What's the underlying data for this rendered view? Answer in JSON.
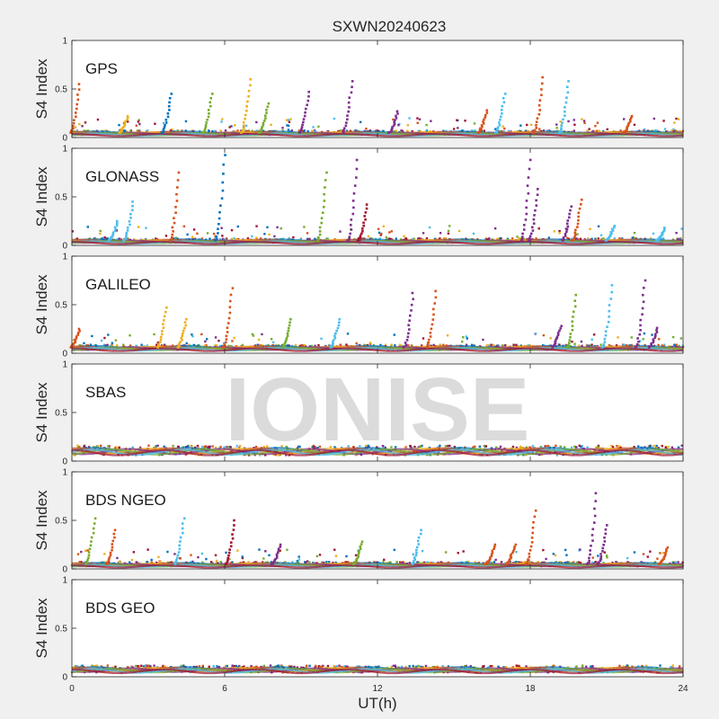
{
  "chart_data": {
    "type": "scatter",
    "title": "SXWN20240623",
    "xlabel": "UT(h)",
    "ylabel": "S4 Index",
    "xlim": [
      0,
      24
    ],
    "ylim": [
      0,
      1
    ],
    "x_ticks": [
      0,
      6,
      12,
      18,
      24
    ],
    "y_ticks": [
      0,
      0.5,
      1
    ],
    "watermark": "IONISE",
    "colors": [
      "#0072BD",
      "#D95319",
      "#EDB120",
      "#7E2F8E",
      "#77AC30",
      "#4DBEEE",
      "#A2142F"
    ],
    "panels": [
      {
        "name": "GPS",
        "baseline": 0.05,
        "spikes": [
          {
            "x": 0.3,
            "y": 0.55,
            "color": "#D95319"
          },
          {
            "x": 2.2,
            "y": 0.22,
            "color": "#EDB120"
          },
          {
            "x": 3.9,
            "y": 0.45,
            "color": "#0072BD"
          },
          {
            "x": 5.5,
            "y": 0.45,
            "color": "#77AC30"
          },
          {
            "x": 7.0,
            "y": 0.6,
            "color": "#EDB120"
          },
          {
            "x": 7.7,
            "y": 0.35,
            "color": "#77AC30"
          },
          {
            "x": 9.3,
            "y": 0.47,
            "color": "#7E2F8E"
          },
          {
            "x": 11.0,
            "y": 0.58,
            "color": "#7E2F8E"
          },
          {
            "x": 12.8,
            "y": 0.27,
            "color": "#7E2F8E"
          },
          {
            "x": 16.3,
            "y": 0.28,
            "color": "#D95319"
          },
          {
            "x": 17.0,
            "y": 0.45,
            "color": "#4DBEEE"
          },
          {
            "x": 18.5,
            "y": 0.62,
            "color": "#D95319"
          },
          {
            "x": 19.5,
            "y": 0.58,
            "color": "#4DBEEE"
          },
          {
            "x": 22.0,
            "y": 0.22,
            "color": "#D95319"
          }
        ]
      },
      {
        "name": "GLONASS",
        "baseline": 0.05,
        "spikes": [
          {
            "x": 1.8,
            "y": 0.25,
            "color": "#4DBEEE"
          },
          {
            "x": 2.4,
            "y": 0.45,
            "color": "#4DBEEE"
          },
          {
            "x": 4.2,
            "y": 0.75,
            "color": "#D95319"
          },
          {
            "x": 6.0,
            "y": 0.93,
            "color": "#0072BD"
          },
          {
            "x": 10.0,
            "y": 0.75,
            "color": "#77AC30"
          },
          {
            "x": 11.2,
            "y": 0.88,
            "color": "#7E2F8E"
          },
          {
            "x": 11.6,
            "y": 0.42,
            "color": "#A2142F"
          },
          {
            "x": 18.0,
            "y": 0.88,
            "color": "#7E2F8E"
          },
          {
            "x": 18.3,
            "y": 0.58,
            "color": "#7E2F8E"
          },
          {
            "x": 19.6,
            "y": 0.4,
            "color": "#7E2F8E"
          },
          {
            "x": 20.0,
            "y": 0.47,
            "color": "#D95319"
          },
          {
            "x": 21.3,
            "y": 0.2,
            "color": "#4DBEEE"
          },
          {
            "x": 23.3,
            "y": 0.18,
            "color": "#4DBEEE"
          }
        ]
      },
      {
        "name": "GALILEO",
        "baseline": 0.06,
        "spikes": [
          {
            "x": 0.3,
            "y": 0.25,
            "color": "#D95319"
          },
          {
            "x": 3.7,
            "y": 0.47,
            "color": "#EDB120"
          },
          {
            "x": 4.5,
            "y": 0.35,
            "color": "#EDB120"
          },
          {
            "x": 6.3,
            "y": 0.67,
            "color": "#D95319"
          },
          {
            "x": 8.6,
            "y": 0.35,
            "color": "#77AC30"
          },
          {
            "x": 10.5,
            "y": 0.35,
            "color": "#4DBEEE"
          },
          {
            "x": 13.4,
            "y": 0.62,
            "color": "#7E2F8E"
          },
          {
            "x": 14.3,
            "y": 0.64,
            "color": "#D95319"
          },
          {
            "x": 19.2,
            "y": 0.28,
            "color": "#7E2F8E"
          },
          {
            "x": 19.8,
            "y": 0.6,
            "color": "#77AC30"
          },
          {
            "x": 21.2,
            "y": 0.7,
            "color": "#4DBEEE"
          },
          {
            "x": 22.5,
            "y": 0.75,
            "color": "#7E2F8E"
          },
          {
            "x": 23.0,
            "y": 0.26,
            "color": "#7E2F8E"
          }
        ]
      },
      {
        "name": "SBAS",
        "baseline": 0.11,
        "spikes": []
      },
      {
        "name": "BDS NGEO",
        "baseline": 0.05,
        "spikes": [
          {
            "x": 0.9,
            "y": 0.52,
            "color": "#77AC30"
          },
          {
            "x": 1.7,
            "y": 0.4,
            "color": "#D95319"
          },
          {
            "x": 4.4,
            "y": 0.52,
            "color": "#4DBEEE"
          },
          {
            "x": 6.4,
            "y": 0.5,
            "color": "#A2142F"
          },
          {
            "x": 8.2,
            "y": 0.25,
            "color": "#7E2F8E"
          },
          {
            "x": 11.4,
            "y": 0.28,
            "color": "#77AC30"
          },
          {
            "x": 13.7,
            "y": 0.4,
            "color": "#4DBEEE"
          },
          {
            "x": 16.6,
            "y": 0.25,
            "color": "#D95319"
          },
          {
            "x": 17.4,
            "y": 0.25,
            "color": "#D95319"
          },
          {
            "x": 18.2,
            "y": 0.6,
            "color": "#D95319"
          },
          {
            "x": 20.6,
            "y": 0.78,
            "color": "#7E2F8E"
          },
          {
            "x": 21.0,
            "y": 0.45,
            "color": "#7E2F8E"
          },
          {
            "x": 23.4,
            "y": 0.22,
            "color": "#D95319"
          }
        ]
      },
      {
        "name": "BDS GEO",
        "baseline": 0.08,
        "spikes": []
      }
    ]
  }
}
